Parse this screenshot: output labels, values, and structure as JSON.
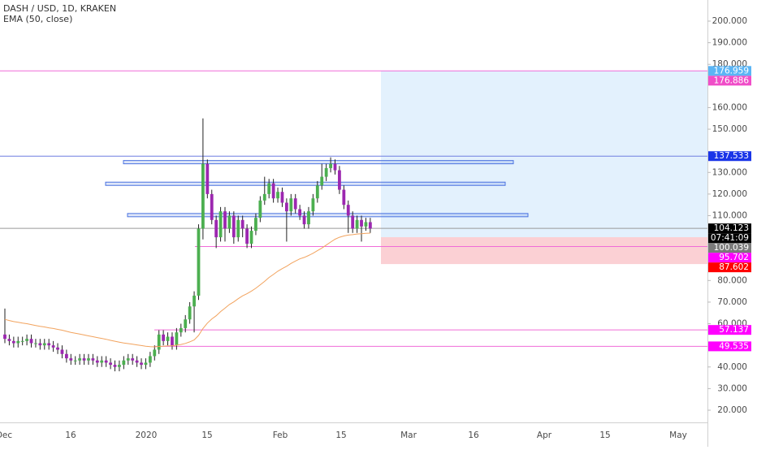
{
  "chart_data": {
    "type": "candlestick",
    "title": "DASH / USD, 1D, KRAKEN",
    "indicator": "EMA (50, close)",
    "x_labels": [
      "Dec",
      "16",
      "2020",
      "15",
      "Feb",
      "15",
      "Mar",
      "16",
      "Apr",
      "15",
      "May"
    ],
    "open": [
      55,
      53,
      52,
      51,
      52,
      52,
      53,
      51,
      51,
      50,
      51,
      50,
      49,
      48,
      46,
      44,
      43,
      43,
      44,
      43,
      44,
      43,
      42,
      43,
      42,
      41,
      40,
      41,
      43,
      44,
      43,
      42,
      41,
      42,
      45,
      48,
      55,
      52,
      54,
      50,
      56,
      58,
      62,
      68,
      73,
      104,
      134,
      120,
      108,
      100,
      112,
      104,
      110,
      100,
      108,
      104,
      97,
      103,
      109,
      117,
      120,
      125,
      118,
      121,
      116,
      112,
      118,
      113,
      110,
      106,
      112,
      118,
      124,
      128,
      132,
      134,
      131,
      122,
      115,
      110,
      104,
      108,
      105,
      107
    ],
    "high": [
      67,
      55,
      54,
      54,
      54,
      55,
      55,
      53,
      53,
      53,
      53,
      52,
      51,
      50,
      48,
      46,
      45,
      46,
      46,
      46,
      46,
      45,
      45,
      45,
      44,
      43,
      43,
      45,
      46,
      46,
      45,
      44,
      44,
      47,
      50,
      57,
      57,
      56,
      56,
      58,
      60,
      64,
      70,
      75,
      106,
      155,
      136,
      122,
      110,
      114,
      114,
      112,
      112,
      110,
      110,
      106,
      105,
      111,
      119,
      128,
      127,
      127,
      123,
      123,
      118,
      120,
      120,
      115,
      112,
      114,
      120,
      126,
      134,
      134,
      137,
      136,
      133,
      124,
      117,
      112,
      110,
      110,
      109,
      109
    ],
    "low": [
      51,
      50,
      49,
      49,
      50,
      50,
      49,
      49,
      48,
      48,
      48,
      47,
      46,
      44,
      42,
      41,
      41,
      41,
      41,
      41,
      41,
      40,
      40,
      40,
      39,
      38,
      38,
      39,
      41,
      41,
      40,
      39,
      39,
      40,
      43,
      46,
      50,
      50,
      48,
      48,
      54,
      56,
      60,
      56,
      71,
      99,
      118,
      106,
      95,
      98,
      98,
      102,
      97,
      98,
      100,
      95,
      95,
      101,
      107,
      115,
      118,
      116,
      116,
      114,
      98,
      110,
      111,
      108,
      104,
      104,
      110,
      116,
      122,
      126,
      130,
      129,
      120,
      113,
      102,
      102,
      102,
      98,
      103,
      102
    ],
    "close": [
      53,
      52,
      51,
      52,
      52,
      53,
      51,
      51,
      50,
      51,
      50,
      49,
      48,
      46,
      44,
      43,
      43,
      44,
      43,
      44,
      43,
      42,
      43,
      42,
      41,
      40,
      41,
      43,
      44,
      43,
      42,
      41,
      42,
      45,
      48,
      55,
      52,
      54,
      50,
      56,
      58,
      62,
      68,
      73,
      104,
      134,
      120,
      108,
      100,
      112,
      104,
      110,
      100,
      108,
      104,
      97,
      103,
      109,
      117,
      120,
      125,
      118,
      121,
      116,
      112,
      118,
      113,
      110,
      106,
      112,
      118,
      124,
      128,
      132,
      134,
      131,
      122,
      115,
      110,
      104,
      108,
      105,
      107,
      104
    ],
    "up_color": "#4caf50",
    "down_color": "#9c27b0",
    "ema": {
      "color": "#f2a35e",
      "values": [
        62,
        61.5,
        61,
        60.7,
        60.3,
        60,
        59.6,
        59.2,
        58.8,
        58.5,
        58.1,
        57.8,
        57.4,
        57,
        56.5,
        56,
        55.6,
        55.2,
        54.8,
        54.4,
        54,
        53.6,
        53.2,
        52.8,
        52.3,
        51.9,
        51.5,
        51.1,
        50.8,
        50.5,
        50.2,
        49.9,
        49.6,
        49.4,
        49.3,
        49.5,
        49.6,
        49.8,
        49.8,
        50.1,
        50.4,
        50.9,
        51.6,
        52.5,
        54.6,
        57.8,
        60.3,
        62.2,
        63.7,
        65.6,
        67.2,
        68.9,
        70.1,
        71.6,
        72.9,
        73.9,
        75.1,
        76.4,
        78,
        79.6,
        81.4,
        82.8,
        84.3,
        85.5,
        86.6,
        87.9,
        89,
        90,
        90.7,
        91.6,
        92.6,
        93.8,
        95,
        96.4,
        97.8,
        99.1,
        100,
        100.6,
        101,
        101.2,
        101.5,
        101.6,
        101.8,
        101.9
      ]
    },
    "ylim": [
      14.36,
      209.77
    ],
    "yticks": [
      {
        "value": 200,
        "label": "200.000"
      },
      {
        "value": 190,
        "label": "190.000"
      },
      {
        "value": 180,
        "label": "180.000"
      },
      {
        "value": 160,
        "label": "160.000"
      },
      {
        "value": 150,
        "label": "150.000"
      },
      {
        "value": 130,
        "label": "130.000"
      },
      {
        "value": 120,
        "label": "120.000"
      },
      {
        "value": 110,
        "label": "110.000"
      },
      {
        "value": 80,
        "label": "80.000"
      },
      {
        "value": 70,
        "label": "70.000"
      },
      {
        "value": 60,
        "label": "60.000"
      },
      {
        "value": 40,
        "label": "40.000"
      },
      {
        "value": 30,
        "label": "30.000"
      },
      {
        "value": 20,
        "label": "20.000"
      }
    ],
    "levels": [
      {
        "value": 176.959,
        "color": "#f06cd8",
        "label_color": "#5bb5f5"
      },
      {
        "value": 137.533,
        "color": "#6f7fe0",
        "label_color": "#1a35e8"
      },
      {
        "value": 95.702,
        "color": "#f06cd8",
        "label_color": "#ff00ff"
      },
      {
        "value": 57.137,
        "color": "#f06cd8",
        "label_color": "#ff00ff"
      },
      {
        "value": 49.535,
        "color": "#f06cd8",
        "label_color": "#ff00ff"
      }
    ],
    "zones": [
      {
        "low": 134,
        "high": 135.5
      },
      {
        "low": 124,
        "high": 125.5
      },
      {
        "low": 109.5,
        "high": 111
      }
    ],
    "zone_color": "#4a72e0",
    "position": {
      "target": 176.886,
      "entry": 100.039,
      "stop": 87.602,
      "profit_color": "#e3f1fd",
      "loss_color": "#fbd0d4",
      "target_label_color": "#f04ec8",
      "entry_label_color": "#7b7b7b",
      "stop_label_color": "#ff0000"
    },
    "last_price": 104.123,
    "countdown": "07:41:09"
  }
}
